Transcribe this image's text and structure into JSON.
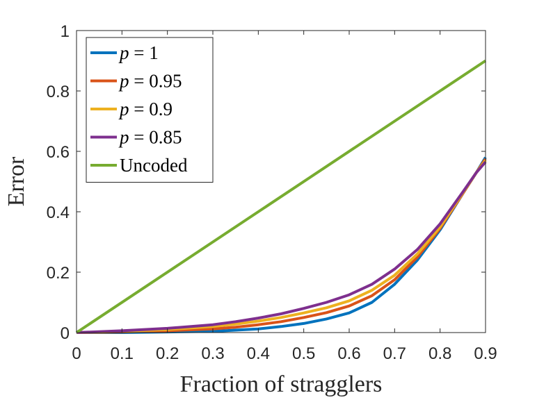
{
  "chart_data": {
    "type": "line",
    "xlabel": "Fraction of stragglers",
    "ylabel": "Error",
    "xlim": [
      0,
      0.9
    ],
    "ylim": [
      0,
      1
    ],
    "xticks": [
      "0",
      "0.1",
      "0.2",
      "0.3",
      "0.4",
      "0.5",
      "0.6",
      "0.7",
      "0.8",
      "0.9"
    ],
    "yticks": [
      "0",
      "0.2",
      "0.4",
      "0.6",
      "0.8",
      "1"
    ],
    "grid": false,
    "legend_position": "top-left",
    "series": [
      {
        "name": "p = 1",
        "legend_var": "p",
        "legend_rest": " = 1",
        "color": "#0072BD",
        "x": [
          0,
          0.1,
          0.2,
          0.3,
          0.35,
          0.4,
          0.45,
          0.5,
          0.55,
          0.6,
          0.65,
          0.7,
          0.75,
          0.8,
          0.85,
          0.88,
          0.9
        ],
        "y": [
          0,
          0,
          0.002,
          0.004,
          0.008,
          0.012,
          0.02,
          0.03,
          0.045,
          0.065,
          0.1,
          0.16,
          0.24,
          0.34,
          0.46,
          0.53,
          0.58
        ]
      },
      {
        "name": "p = 0.95",
        "legend_var": "p",
        "legend_rest": " = 0.95",
        "color": "#D95319",
        "x": [
          0,
          0.1,
          0.2,
          0.3,
          0.35,
          0.4,
          0.45,
          0.5,
          0.55,
          0.6,
          0.65,
          0.7,
          0.75,
          0.8,
          0.85,
          0.88,
          0.9
        ],
        "y": [
          0,
          0.002,
          0.006,
          0.012,
          0.018,
          0.026,
          0.036,
          0.05,
          0.066,
          0.088,
          0.122,
          0.175,
          0.25,
          0.345,
          0.46,
          0.53,
          0.575
        ]
      },
      {
        "name": "p = 0.9",
        "legend_var": "p",
        "legend_rest": " = 0.9",
        "color": "#EDB120",
        "x": [
          0,
          0.1,
          0.2,
          0.3,
          0.35,
          0.4,
          0.45,
          0.5,
          0.55,
          0.6,
          0.65,
          0.7,
          0.75,
          0.8,
          0.85,
          0.88,
          0.9
        ],
        "y": [
          0,
          0.004,
          0.01,
          0.02,
          0.028,
          0.038,
          0.05,
          0.065,
          0.082,
          0.105,
          0.14,
          0.19,
          0.26,
          0.35,
          0.462,
          0.53,
          0.57
        ]
      },
      {
        "name": "p = 0.85",
        "legend_var": "p",
        "legend_rest": " = 0.85",
        "color": "#7E2F8E",
        "x": [
          0,
          0.1,
          0.2,
          0.3,
          0.35,
          0.4,
          0.45,
          0.5,
          0.55,
          0.6,
          0.65,
          0.7,
          0.75,
          0.8,
          0.85,
          0.88,
          0.9
        ],
        "y": [
          0,
          0.006,
          0.014,
          0.026,
          0.036,
          0.048,
          0.062,
          0.08,
          0.1,
          0.125,
          0.16,
          0.21,
          0.275,
          0.36,
          0.465,
          0.53,
          0.565
        ]
      },
      {
        "name": "Uncoded",
        "legend_var": "",
        "legend_rest": "Uncoded",
        "color": "#77AC30",
        "x": [
          0,
          0.9
        ],
        "y": [
          0,
          0.9
        ]
      }
    ]
  }
}
